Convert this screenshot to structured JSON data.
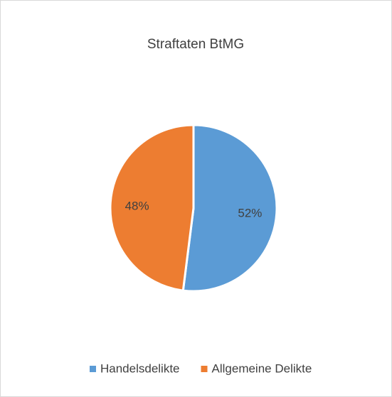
{
  "chart_data": {
    "type": "pie",
    "title": "Straftaten BtMG",
    "categories": [
      "Handelsdelikte",
      "Allgemeine Delikte"
    ],
    "values": [
      52,
      48
    ],
    "value_labels": [
      "52%",
      "48%"
    ],
    "colors": [
      "#5b9bd5",
      "#ed7d31"
    ],
    "legend": "bottom"
  }
}
